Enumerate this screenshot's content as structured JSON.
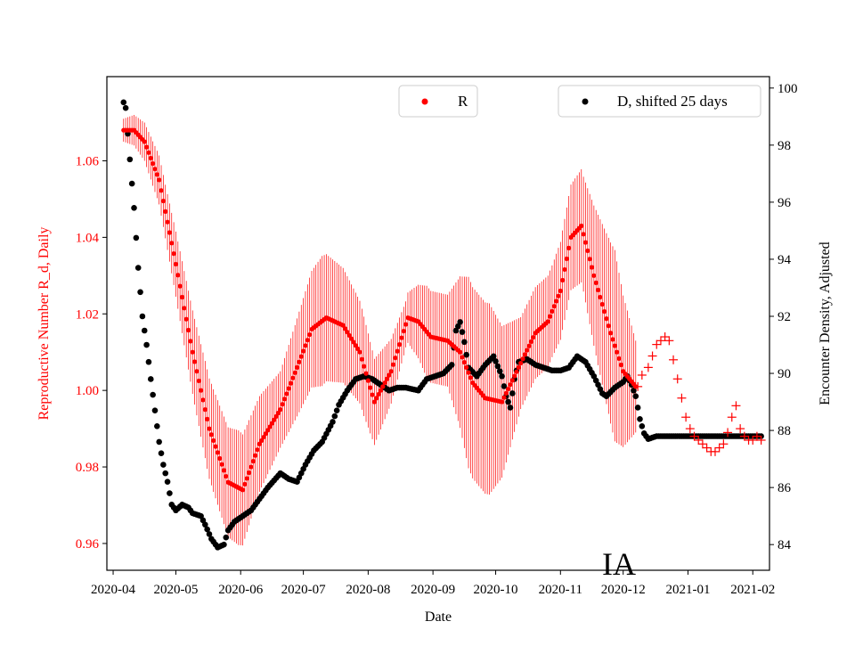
{
  "chart_data": {
    "type": "scatter",
    "region_label": "IA",
    "xlabel": "Date",
    "x_ticks": [
      "2020-04",
      "2020-05",
      "2020-06",
      "2020-07",
      "2020-08",
      "2020-09",
      "2020-10",
      "2020-11",
      "2020-12",
      "2021-01",
      "2021-02"
    ],
    "y_left": {
      "label": "Reproductive Number R_d, Daily",
      "color": "#ff0000",
      "lim": [
        0.953,
        1.082
      ],
      "ticks": [
        "0.96",
        "0.98",
        "1.00",
        "1.02",
        "1.04",
        "1.06"
      ],
      "tick_values": [
        0.96,
        0.98,
        1.0,
        1.02,
        1.04,
        1.06
      ]
    },
    "y_right": {
      "label": "Encounter Density, Adjusted",
      "color": "#000000",
      "lim": [
        83.1,
        100.4
      ],
      "ticks": [
        "84",
        "86",
        "88",
        "90",
        "92",
        "94",
        "96",
        "98",
        "100"
      ],
      "tick_values": [
        84,
        86,
        88,
        90,
        92,
        94,
        96,
        98,
        100
      ]
    },
    "legend_r": {
      "label": "R",
      "placement": "top-center",
      "color": "#ff0000"
    },
    "legend_d": {
      "label": "D, shifted 25 days",
      "placement": "top-right",
      "color": "#000000"
    },
    "date_range": {
      "start": "2020-04-01",
      "end": "2021-02-01"
    },
    "series": [
      {
        "name": "R",
        "axis": "left",
        "color": "#ff0000",
        "marker": "dot",
        "start_day": 5,
        "end_day": 250,
        "knots": [
          [
            5,
            1.068
          ],
          [
            10,
            1.068
          ],
          [
            15,
            1.065
          ],
          [
            22,
            1.055
          ],
          [
            30,
            1.033
          ],
          [
            38,
            1.01
          ],
          [
            46,
            0.99
          ],
          [
            55,
            0.976
          ],
          [
            62,
            0.974
          ],
          [
            70,
            0.986
          ],
          [
            80,
            0.995
          ],
          [
            88,
            1.006
          ],
          [
            95,
            1.016
          ],
          [
            102,
            1.019
          ],
          [
            110,
            1.017
          ],
          [
            118,
            1.01
          ],
          [
            125,
            0.997
          ],
          [
            133,
            1.005
          ],
          [
            141,
            1.019
          ],
          [
            146,
            1.018
          ],
          [
            152,
            1.014
          ],
          [
            160,
            1.013
          ],
          [
            166,
            1.01
          ],
          [
            172,
            1.002
          ],
          [
            178,
            0.998
          ],
          [
            186,
            0.997
          ],
          [
            194,
            1.006
          ],
          [
            202,
            1.015
          ],
          [
            208,
            1.018
          ],
          [
            214,
            1.026
          ],
          [
            219,
            1.04
          ],
          [
            224,
            1.043
          ],
          [
            230,
            1.03
          ],
          [
            238,
            1.015
          ],
          [
            244,
            1.005
          ],
          [
            250,
            1.001
          ]
        ],
        "band_knots": [
          [
            5,
            0.003
          ],
          [
            25,
            0.007
          ],
          [
            45,
            0.013
          ],
          [
            60,
            0.015
          ],
          [
            80,
            0.01
          ],
          [
            100,
            0.017
          ],
          [
            120,
            0.013
          ],
          [
            140,
            0.006
          ],
          [
            150,
            0.012
          ],
          [
            160,
            0.012
          ],
          [
            170,
            0.025
          ],
          [
            180,
            0.025
          ],
          [
            195,
            0.012
          ],
          [
            210,
            0.012
          ],
          [
            225,
            0.015
          ],
          [
            240,
            0.025
          ],
          [
            250,
            0.012
          ]
        ]
      },
      {
        "name": "R (extrapolated)",
        "axis": "left",
        "color": "#ff0000",
        "marker": "plus",
        "points": [
          [
            251,
            1.001
          ],
          [
            253,
            1.004
          ],
          [
            256,
            1.006
          ],
          [
            258,
            1.009
          ],
          [
            260,
            1.012
          ],
          [
            262,
            1.013
          ],
          [
            264,
            1.014
          ],
          [
            266,
            1.013
          ],
          [
            268,
            1.008
          ],
          [
            270,
            1.003
          ],
          [
            272,
            0.998
          ],
          [
            274,
            0.993
          ],
          [
            276,
            0.99
          ],
          [
            278,
            0.988
          ],
          [
            280,
            0.987
          ],
          [
            282,
            0.986
          ],
          [
            284,
            0.985
          ],
          [
            286,
            0.984
          ],
          [
            288,
            0.984
          ],
          [
            290,
            0.985
          ],
          [
            292,
            0.986
          ],
          [
            294,
            0.989
          ],
          [
            296,
            0.993
          ],
          [
            298,
            0.996
          ],
          [
            300,
            0.99
          ],
          [
            302,
            0.988
          ],
          [
            304,
            0.987
          ],
          [
            306,
            0.987
          ],
          [
            308,
            0.988
          ],
          [
            310,
            0.987
          ]
        ]
      },
      {
        "name": "D, shifted 25 days",
        "axis": "right",
        "color": "#000000",
        "marker": "dot",
        "start_day": 5,
        "end_day": 310,
        "knots": [
          [
            5,
            99.5
          ],
          [
            6,
            99.3
          ],
          [
            8,
            97.5
          ],
          [
            10,
            95.8
          ],
          [
            12,
            93.7
          ],
          [
            14,
            92.0
          ],
          [
            16,
            91.0
          ],
          [
            18,
            89.8
          ],
          [
            20,
            88.7
          ],
          [
            22,
            87.6
          ],
          [
            24,
            86.8
          ],
          [
            26,
            86.2
          ],
          [
            28,
            85.4
          ],
          [
            30,
            85.2
          ],
          [
            33,
            85.4
          ],
          [
            36,
            85.3
          ],
          [
            38,
            85.1
          ],
          [
            42,
            85.0
          ],
          [
            44,
            84.7
          ],
          [
            47,
            84.2
          ],
          [
            50,
            83.9
          ],
          [
            53,
            84.0
          ],
          [
            55,
            84.5
          ],
          [
            58,
            84.8
          ],
          [
            62,
            85.0
          ],
          [
            66,
            85.2
          ],
          [
            70,
            85.6
          ],
          [
            74,
            86.0
          ],
          [
            80,
            86.5
          ],
          [
            84,
            86.3
          ],
          [
            88,
            86.2
          ],
          [
            92,
            86.8
          ],
          [
            96,
            87.3
          ],
          [
            100,
            87.6
          ],
          [
            105,
            88.3
          ],
          [
            108,
            88.9
          ],
          [
            112,
            89.4
          ],
          [
            116,
            89.8
          ],
          [
            120,
            89.9
          ],
          [
            124,
            89.8
          ],
          [
            128,
            89.6
          ],
          [
            132,
            89.4
          ],
          [
            136,
            89.5
          ],
          [
            140,
            89.5
          ],
          [
            146,
            89.4
          ],
          [
            150,
            89.8
          ],
          [
            154,
            89.9
          ],
          [
            158,
            90.0
          ],
          [
            162,
            90.3
          ],
          [
            164,
            91.5
          ],
          [
            166,
            91.8
          ],
          [
            168,
            91.1
          ],
          [
            170,
            90.2
          ],
          [
            174,
            89.9
          ],
          [
            178,
            90.3
          ],
          [
            182,
            90.6
          ],
          [
            186,
            89.9
          ],
          [
            188,
            89.2
          ],
          [
            190,
            88.8
          ],
          [
            192,
            89.8
          ],
          [
            194,
            90.4
          ],
          [
            198,
            90.5
          ],
          [
            202,
            90.3
          ],
          [
            206,
            90.2
          ],
          [
            210,
            90.1
          ],
          [
            214,
            90.1
          ],
          [
            218,
            90.2
          ],
          [
            222,
            90.6
          ],
          [
            226,
            90.4
          ],
          [
            230,
            89.9
          ],
          [
            234,
            89.3
          ],
          [
            236,
            89.2
          ],
          [
            240,
            89.5
          ],
          [
            244,
            89.7
          ],
          [
            246,
            89.9
          ],
          [
            248,
            89.6
          ],
          [
            250,
            89.2
          ],
          [
            252,
            88.4
          ],
          [
            254,
            87.9
          ],
          [
            256,
            87.7
          ],
          [
            260,
            87.8
          ],
          [
            310,
            87.8
          ]
        ]
      }
    ]
  }
}
